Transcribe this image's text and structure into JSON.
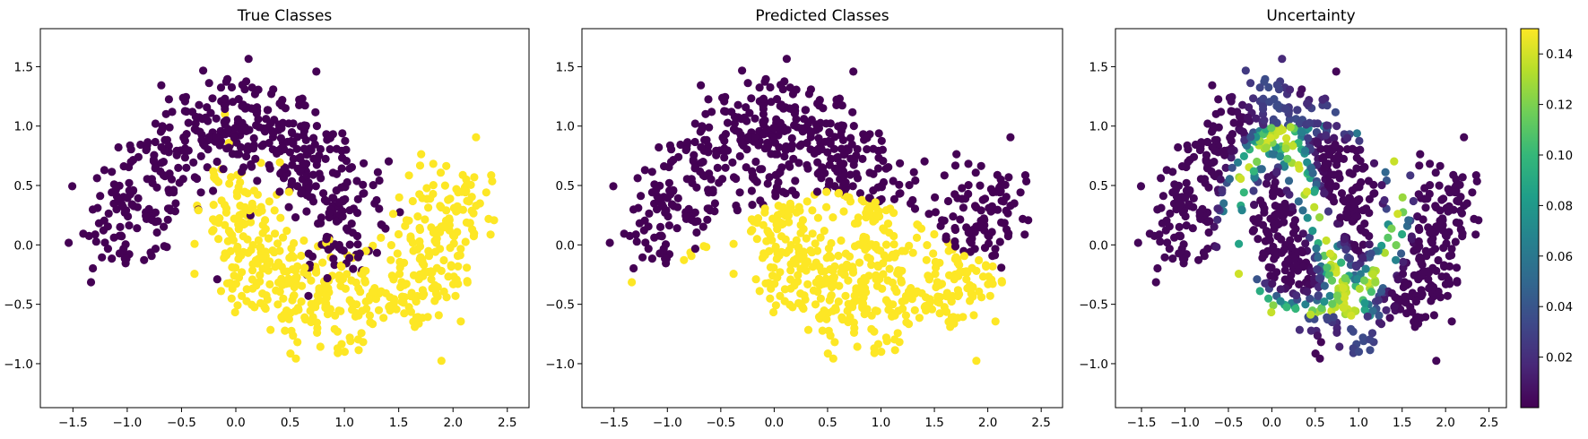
{
  "chart_data": [
    {
      "type": "scatter",
      "title": "True Classes",
      "xlim": [
        -1.8,
        2.7
      ],
      "ylim": [
        -1.37,
        1.82
      ],
      "xticks": [
        -1.5,
        -1.0,
        -0.5,
        0.0,
        0.5,
        1.0,
        1.5,
        2.0,
        2.5
      ],
      "xtick_labels": [
        "−1.5",
        "−1.0",
        "−0.5",
        "0.0",
        "0.5",
        "1.0",
        "1.5",
        "2.0",
        "2.5"
      ],
      "yticks": [
        -1.0,
        -0.5,
        0.0,
        0.5,
        1.0,
        1.5
      ],
      "ytick_labels": [
        "−1.0",
        "−0.5",
        "0.0",
        "0.5",
        "1.0",
        "1.5"
      ],
      "grid": false,
      "color_by": "class",
      "class_colors": [
        "#440154",
        "#fde725"
      ],
      "points": "two interleaving half-moons (1000 points), class 0 upper moon, class 1 lower moon, with label noise near the overlap"
    },
    {
      "type": "scatter",
      "title": "Predicted Classes",
      "xlim": [
        -1.8,
        2.7
      ],
      "ylim": [
        -1.37,
        1.82
      ],
      "xticks": [
        -1.5,
        -1.0,
        -0.5,
        0.0,
        0.5,
        1.0,
        1.5,
        2.0,
        2.5
      ],
      "xtick_labels": [
        "−1.5",
        "−1.0",
        "−0.5",
        "0.0",
        "0.5",
        "1.0",
        "1.5",
        "2.0",
        "2.5"
      ],
      "yticks": [
        -1.0,
        -0.5,
        0.0,
        0.5,
        1.0,
        1.5
      ],
      "ytick_labels": [
        "−1.0",
        "−0.5",
        "0.0",
        "0.5",
        "1.0",
        "1.5"
      ],
      "grid": false,
      "color_by": "predicted_class",
      "class_colors": [
        "#440154",
        "#fde725"
      ]
    },
    {
      "type": "scatter",
      "title": "Uncertainty",
      "xlim": [
        -1.8,
        2.7
      ],
      "ylim": [
        -1.37,
        1.82
      ],
      "xticks": [
        -1.5,
        -1.0,
        -0.5,
        0.0,
        0.5,
        1.0,
        1.5,
        2.0,
        2.5
      ],
      "xtick_labels": [
        "−1.5",
        "−1.0",
        "−0.5",
        "0.0",
        "0.5",
        "1.0",
        "1.5",
        "2.0",
        "2.5"
      ],
      "yticks": [
        -1.0,
        -0.5,
        0.0,
        0.5,
        1.0,
        1.5
      ],
      "ytick_labels": [
        "−1.0",
        "−0.5",
        "0.0",
        "0.5",
        "1.0",
        "1.5"
      ],
      "grid": false,
      "color_by": "uncertainty",
      "colormap": "viridis",
      "colorbar": {
        "range": [
          0.0,
          0.15
        ],
        "ticks": [
          0.02,
          0.04,
          0.06,
          0.08,
          0.1,
          0.12,
          0.14
        ],
        "tick_labels": [
          "0.02",
          "0.04",
          "0.06",
          "0.08",
          "0.10",
          "0.12",
          "0.14"
        ]
      }
    }
  ],
  "colors": {
    "viridis_stops": [
      "#440154",
      "#482878",
      "#3e4989",
      "#31688e",
      "#26828e",
      "#1f9e89",
      "#35b779",
      "#6ece58",
      "#b5de2b",
      "#fde725"
    ]
  }
}
